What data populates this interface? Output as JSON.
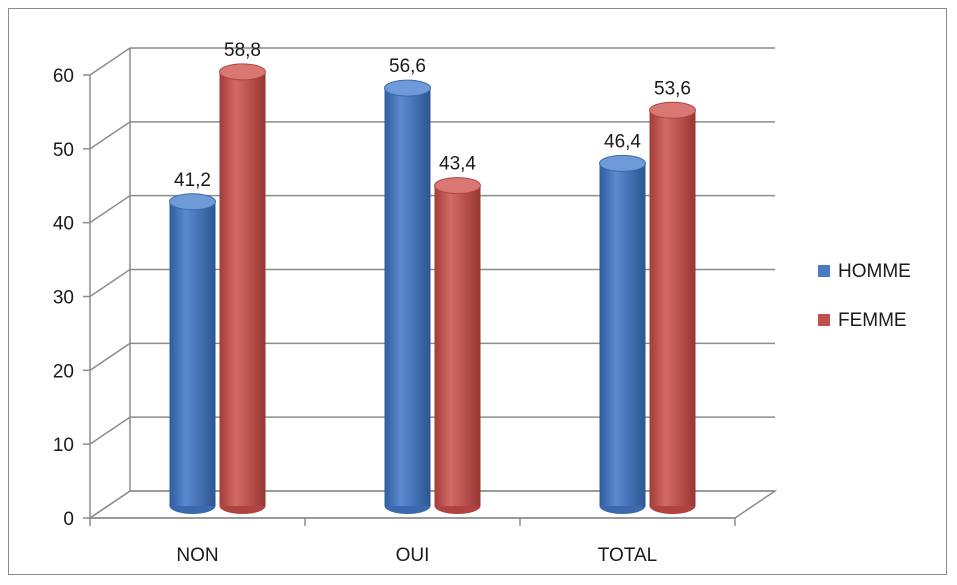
{
  "chart_data": {
    "type": "bar",
    "categories": [
      "NON",
      "OUI",
      "TOTAL"
    ],
    "series": [
      {
        "name": "HOMME",
        "values": [
          41.2,
          56.6,
          46.4
        ],
        "value_labels": [
          "41,2",
          "56,6",
          "46,4"
        ],
        "color": "#4a7ac0"
      },
      {
        "name": "FEMME",
        "values": [
          58.8,
          43.4,
          53.6
        ],
        "value_labels": [
          "58,8",
          "43,4",
          "53,6"
        ],
        "color": "#c0504d"
      }
    ],
    "ylim": [
      0,
      60
    ],
    "yticks": [
      0,
      10,
      20,
      30,
      40,
      50,
      60
    ],
    "grid": true,
    "legend_position": "right",
    "style": "3d-cylinder"
  }
}
